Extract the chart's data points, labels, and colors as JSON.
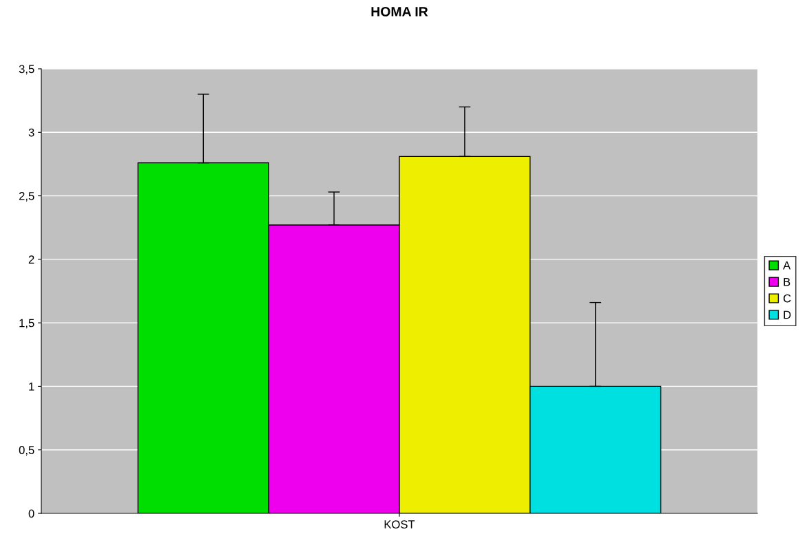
{
  "chart_data": {
    "type": "bar",
    "title": "HOMA IR",
    "categories": [
      "KOST"
    ],
    "series": [
      {
        "name": "A",
        "color": "#00dd00",
        "values": [
          2.76
        ],
        "errors": [
          [
            2.76,
            3.3
          ]
        ]
      },
      {
        "name": "B",
        "color": "#ee00ee",
        "values": [
          2.27
        ],
        "errors": [
          [
            2.27,
            2.53
          ]
        ]
      },
      {
        "name": "C",
        "color": "#eeee00",
        "values": [
          2.81
        ],
        "errors": [
          [
            2.81,
            3.2
          ]
        ]
      },
      {
        "name": "D",
        "color": "#00e0e0",
        "values": [
          1.0
        ],
        "errors": [
          [
            1.0,
            1.66
          ]
        ]
      }
    ],
    "ylim": [
      0,
      3.5
    ],
    "yticks": [
      0,
      {
        "value": 0.5,
        "label": "0,5"
      },
      1,
      {
        "value": 1.5,
        "label": "1,5"
      },
      2,
      {
        "value": 2.5,
        "label": "2,5"
      },
      3,
      {
        "value": 3.5,
        "label": "3,5"
      }
    ],
    "grid": "y",
    "legend": "right"
  }
}
